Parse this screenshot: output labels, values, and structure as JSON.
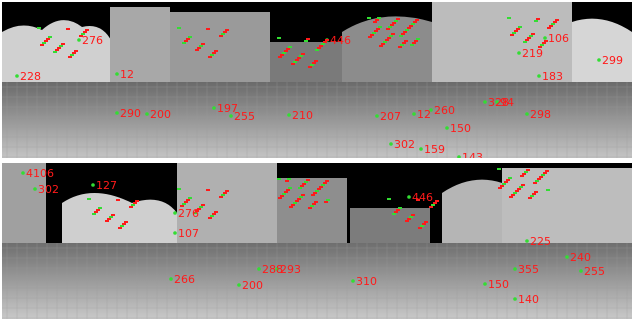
{
  "panels": [
    {
      "id": "top",
      "labels": [
        "276",
        "228",
        "12",
        "446",
        "290",
        "200",
        "197",
        "255",
        "210",
        "207",
        "12",
        "260",
        "328",
        "94",
        "298",
        "219",
        "183",
        "299",
        "150",
        "143",
        "159",
        "302",
        "106"
      ],
      "label_pos": [
        [
          80,
          42
        ],
        [
          18,
          78
        ],
        [
          118,
          76
        ],
        [
          328,
          42
        ],
        [
          118,
          115
        ],
        [
          148,
          116
        ],
        [
          215,
          110
        ],
        [
          232,
          118
        ],
        [
          290,
          117
        ],
        [
          378,
          118
        ],
        [
          415,
          116
        ],
        [
          432,
          112
        ],
        [
          486,
          104
        ],
        [
          498,
          104
        ],
        [
          528,
          116
        ],
        [
          520,
          55
        ],
        [
          540,
          78
        ],
        [
          600,
          62
        ],
        [
          448,
          130
        ],
        [
          460,
          159
        ],
        [
          422,
          151
        ],
        [
          392,
          146
        ],
        [
          546,
          40
        ]
      ]
    },
    {
      "id": "bottom",
      "labels": [
        "4106",
        "302",
        "127",
        "276",
        "446",
        "107",
        "288",
        "266",
        "200",
        "293",
        "310",
        "355",
        "240",
        "255",
        "225",
        "150",
        "140"
      ],
      "label_pos": [
        [
          24,
          14
        ],
        [
          36,
          30
        ],
        [
          94,
          26
        ],
        [
          176,
          54
        ],
        [
          410,
          38
        ],
        [
          176,
          74
        ],
        [
          260,
          110
        ],
        [
          172,
          120
        ],
        [
          240,
          126
        ],
        [
          278,
          110
        ],
        [
          354,
          122
        ],
        [
          516,
          110
        ],
        [
          568,
          98
        ],
        [
          582,
          112
        ],
        [
          528,
          82
        ],
        [
          486,
          125
        ],
        [
          516,
          140
        ]
      ]
    }
  ],
  "colors": {
    "label": "#ff1a1a",
    "feature_point": "#33dd33",
    "sky": "#000000"
  }
}
